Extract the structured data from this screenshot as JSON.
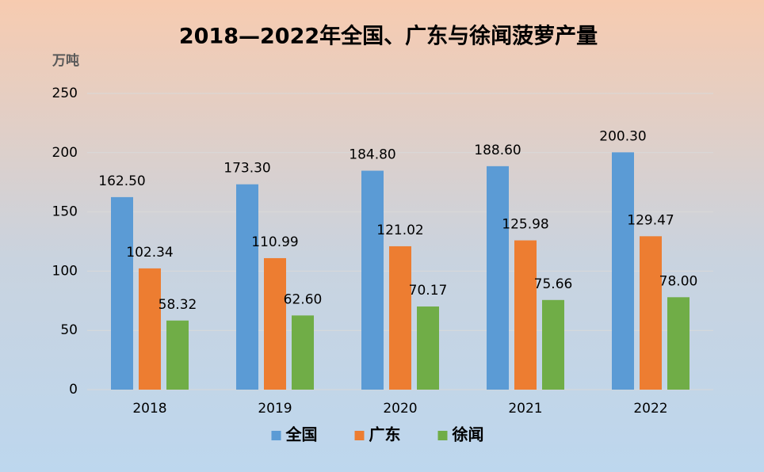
{
  "chart_data": {
    "type": "bar",
    "title": "2018—2022年全国、广东与徐闻菠萝产量",
    "y_label": "万吨",
    "categories": [
      "2018",
      "2019",
      "2020",
      "2021",
      "2022"
    ],
    "series": [
      {
        "name": "全国",
        "color": "#5b9bd5",
        "values": [
          162.5,
          173.3,
          184.8,
          188.6,
          200.3
        ],
        "value_labels": [
          "162.50",
          "173.30",
          "184.80",
          "188.60",
          "200.30"
        ]
      },
      {
        "name": "广东",
        "color": "#ed7d31",
        "values": [
          102.34,
          110.99,
          121.02,
          125.98,
          129.47
        ],
        "value_labels": [
          "102.34",
          "110.99",
          "121.02",
          "125.98",
          "129.47"
        ]
      },
      {
        "name": "徐闻",
        "color": "#70ad47",
        "values": [
          58.32,
          62.6,
          70.17,
          75.66,
          78
        ],
        "value_labels": [
          "58.32",
          "62.60",
          "70.17",
          "75.66",
          "78.00"
        ]
      }
    ],
    "ylim": [
      0,
      250
    ],
    "yticks": [
      0,
      50,
      100,
      150,
      200,
      250
    ],
    "grid": true,
    "legend": "bottom"
  }
}
